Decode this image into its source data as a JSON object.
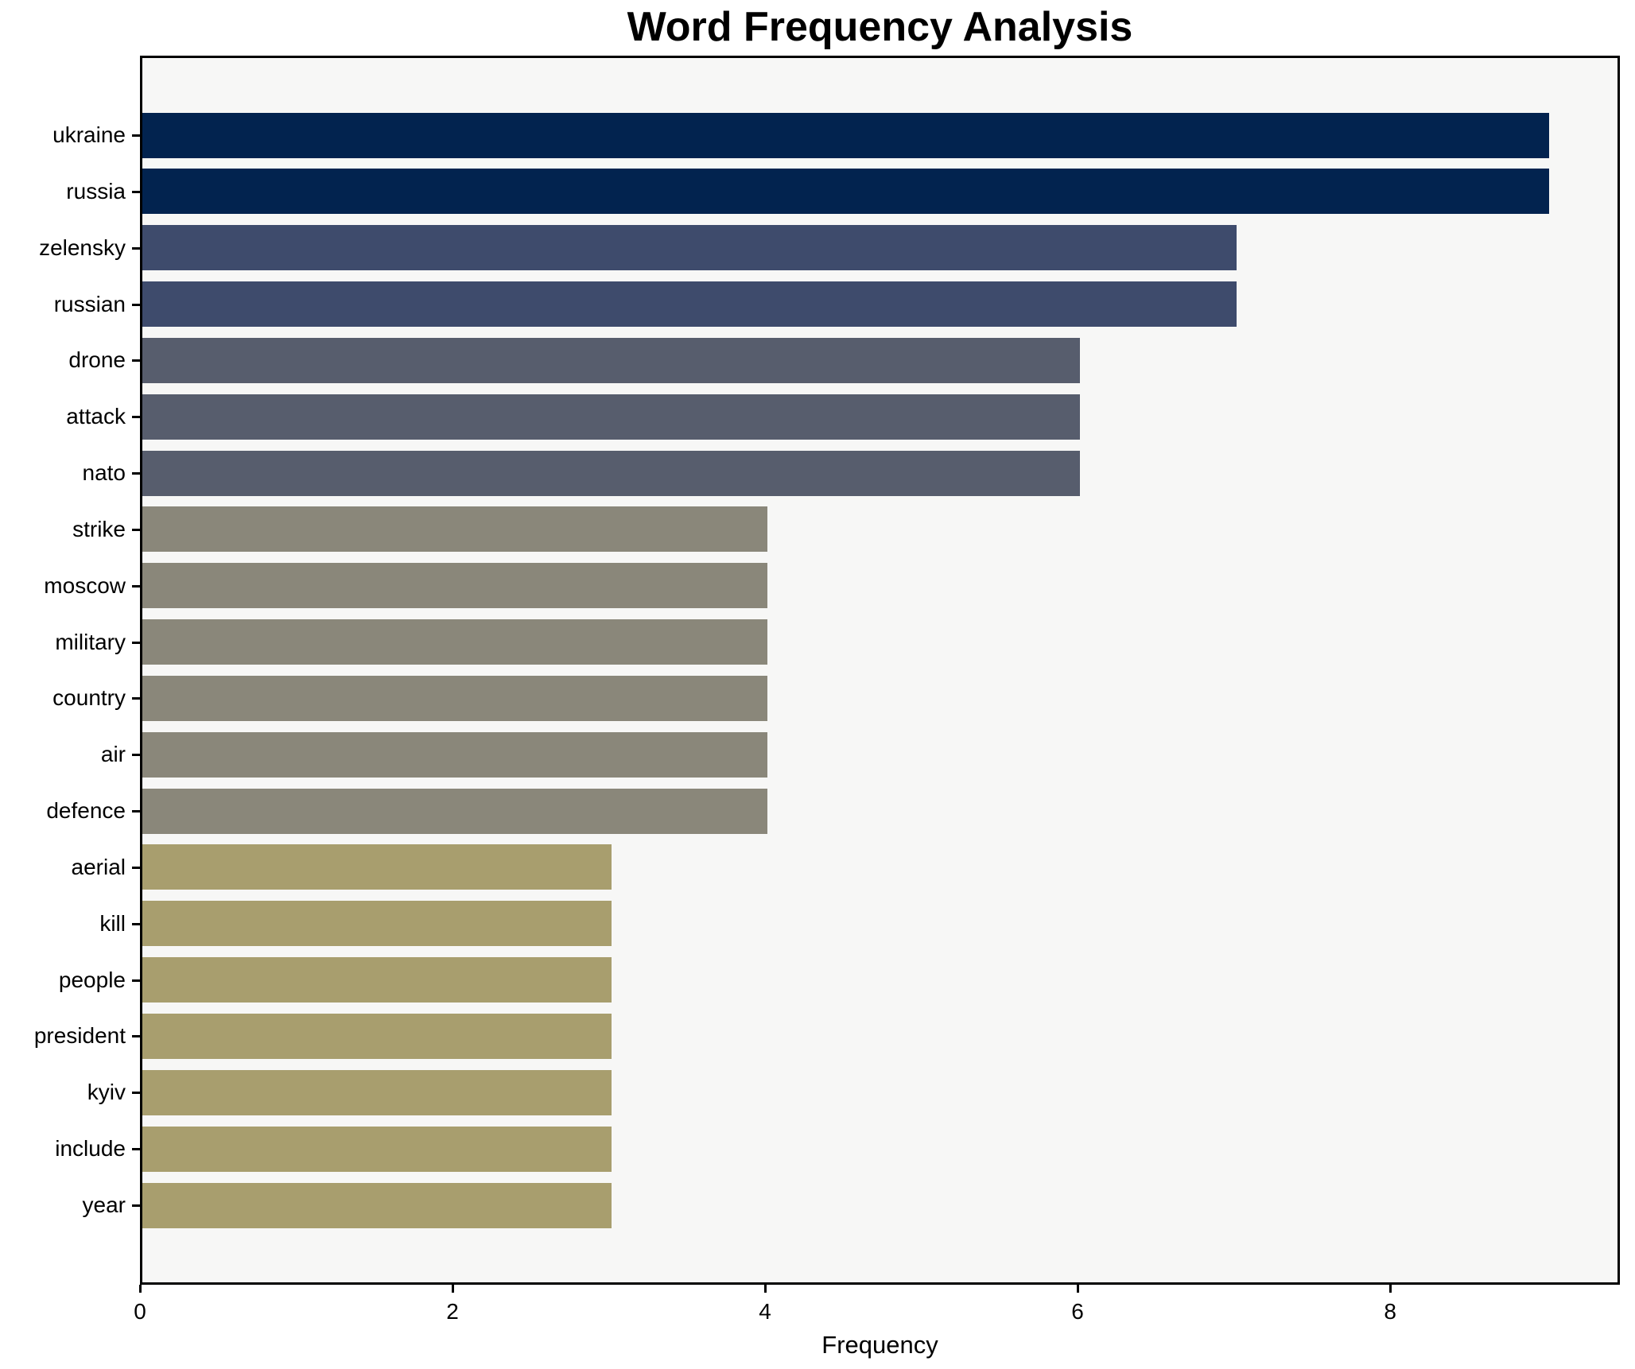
{
  "title": "Word Frequency Analysis",
  "chart_data": {
    "type": "bar",
    "orientation": "horizontal",
    "title": "Word Frequency Analysis",
    "xlabel": "Frequency",
    "ylabel": "",
    "categories": [
      "ukraine",
      "russia",
      "zelensky",
      "russian",
      "drone",
      "attack",
      "nato",
      "strike",
      "moscow",
      "military",
      "country",
      "air",
      "defence",
      "aerial",
      "kill",
      "people",
      "president",
      "kyiv",
      "include",
      "year"
    ],
    "values": [
      9,
      9,
      7,
      7,
      6,
      6,
      6,
      4,
      4,
      4,
      4,
      4,
      4,
      3,
      3,
      3,
      3,
      3,
      3,
      3
    ],
    "bar_colors": [
      "#02234f",
      "#02234f",
      "#3e4b6c",
      "#3e4b6c",
      "#575d6d",
      "#575d6d",
      "#575d6d",
      "#8a877a",
      "#8a877a",
      "#8a877a",
      "#8a877a",
      "#8a877a",
      "#8a877a",
      "#a89e6e",
      "#a89e6e",
      "#a89e6e",
      "#a89e6e",
      "#a89e6e",
      "#a89e6e",
      "#a89e6e"
    ],
    "xlim": [
      0,
      9.47
    ],
    "xticks": [
      0,
      2,
      4,
      6,
      8
    ],
    "grid": false,
    "legend": null,
    "plot_background": "#f7f7f6",
    "spine_color": "#000000",
    "text_color": "#000000"
  }
}
